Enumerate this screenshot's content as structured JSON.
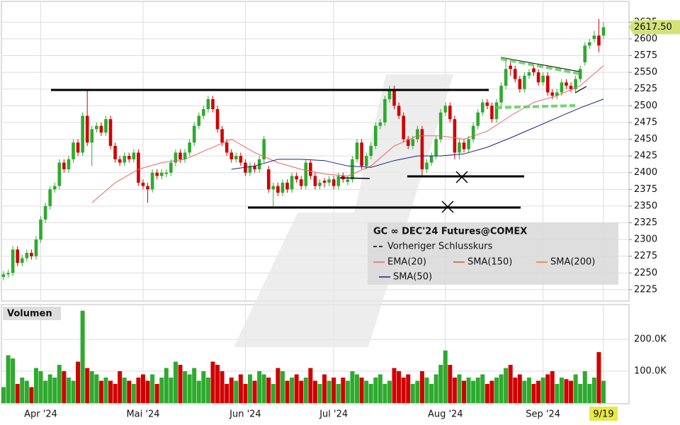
{
  "chart_data": [
    {
      "type": "candlestick",
      "title": "GC ∞ DEC'24 Futures@COMEX",
      "up_color": "#2eaa2e",
      "down_color": "#d00000",
      "ylim": [
        2208,
        2655
      ],
      "yticks": [
        2225,
        2250,
        2275,
        2300,
        2325,
        2350,
        2375,
        2400,
        2425,
        2450,
        2475,
        2500,
        2525,
        2550,
        2575,
        2600,
        2625
      ],
      "grid": true,
      "last_price": 2617.5,
      "last_price_label": "2617.50",
      "categories": [
        null,
        null,
        null,
        null,
        null,
        null,
        null,
        null,
        "Apr '24",
        null,
        null,
        null,
        null,
        null,
        null,
        null,
        null,
        null,
        null,
        null,
        null,
        null,
        null,
        null,
        null,
        null,
        null,
        null,
        null,
        null,
        "Mai '24",
        null,
        null,
        null,
        null,
        null,
        null,
        null,
        null,
        null,
        null,
        null,
        null,
        null,
        null,
        null,
        null,
        null,
        null,
        null,
        null,
        null,
        "Jun '24",
        null,
        null,
        null,
        null,
        null,
        null,
        null,
        null,
        null,
        null,
        null,
        null,
        null,
        null,
        null,
        null,
        null,
        null,
        "Jul '24",
        null,
        null,
        null,
        null,
        null,
        null,
        null,
        null,
        null,
        null,
        null,
        null,
        null,
        null,
        null,
        null,
        null,
        null,
        null,
        null,
        null,
        null,
        null,
        "Aug '24",
        null,
        null,
        null,
        null,
        null,
        null,
        null,
        null,
        null,
        null,
        null,
        null,
        null,
        null,
        null,
        null,
        null,
        null,
        null,
        null,
        "Sep '24",
        null,
        null,
        null,
        null,
        null,
        null,
        null,
        null,
        null,
        null,
        null,
        null,
        "9/19"
      ],
      "candles": [
        [
          2244,
          2253,
          2239,
          2248
        ],
        [
          2248,
          2255,
          2243,
          2250
        ],
        [
          2250,
          2290,
          2245,
          2285
        ],
        [
          2285,
          2290,
          2260,
          2265
        ],
        [
          2265,
          2277,
          2260,
          2272
        ],
        [
          2272,
          2285,
          2267,
          2280
        ],
        [
          2280,
          2285,
          2270,
          2275
        ],
        [
          2275,
          2305,
          2270,
          2300
        ],
        [
          2300,
          2335,
          2295,
          2330
        ],
        [
          2330,
          2355,
          2325,
          2350
        ],
        [
          2350,
          2380,
          2345,
          2375
        ],
        [
          2375,
          2385,
          2370,
          2380
        ],
        [
          2380,
          2420,
          2375,
          2415
        ],
        [
          2415,
          2420,
          2400,
          2405
        ],
        [
          2405,
          2425,
          2400,
          2420
        ],
        [
          2420,
          2450,
          2415,
          2445
        ],
        [
          2445,
          2450,
          2425,
          2430
        ],
        [
          2430,
          2490,
          2425,
          2485
        ],
        [
          2485,
          2525,
          2440,
          2445
        ],
        [
          2445,
          2470,
          2410,
          2465
        ],
        [
          2465,
          2475,
          2460,
          2470
        ],
        [
          2470,
          2475,
          2455,
          2460
        ],
        [
          2460,
          2485,
          2455,
          2480
        ],
        [
          2480,
          2485,
          2435,
          2440
        ],
        [
          2440,
          2445,
          2415,
          2420
        ],
        [
          2420,
          2425,
          2410,
          2415
        ],
        [
          2415,
          2430,
          2410,
          2425
        ],
        [
          2425,
          2430,
          2415,
          2420
        ],
        [
          2420,
          2435,
          2415,
          2430
        ],
        [
          2430,
          2435,
          2380,
          2385
        ],
        [
          2385,
          2390,
          2375,
          2380
        ],
        [
          2380,
          2385,
          2355,
          2375
        ],
        [
          2375,
          2405,
          2370,
          2400
        ],
        [
          2400,
          2405,
          2390,
          2395
        ],
        [
          2395,
          2405,
          2390,
          2400
        ],
        [
          2398,
          2405,
          2393,
          2400
        ],
        [
          2400,
          2420,
          2395,
          2415
        ],
        [
          2415,
          2435,
          2410,
          2430
        ],
        [
          2430,
          2435,
          2415,
          2420
        ],
        [
          2420,
          2435,
          2415,
          2430
        ],
        [
          2430,
          2450,
          2425,
          2445
        ],
        [
          2445,
          2475,
          2440,
          2470
        ],
        [
          2470,
          2490,
          2465,
          2485
        ],
        [
          2485,
          2500,
          2480,
          2495
        ],
        [
          2495,
          2515,
          2490,
          2510
        ],
        [
          2510,
          2515,
          2490,
          2495
        ],
        [
          2495,
          2500,
          2460,
          2465
        ],
        [
          2465,
          2470,
          2440,
          2445
        ],
        [
          2445,
          2450,
          2425,
          2430
        ],
        [
          2430,
          2435,
          2415,
          2420
        ],
        [
          2420,
          2430,
          2415,
          2425
        ],
        [
          2425,
          2430,
          2410,
          2415
        ],
        [
          2415,
          2420,
          2395,
          2400
        ],
        [
          2400,
          2415,
          2395,
          2410
        ],
        [
          2410,
          2415,
          2400,
          2405
        ],
        [
          2405,
          2425,
          2400,
          2420
        ],
        [
          2420,
          2455,
          2415,
          2450
        ],
        [
          2405,
          2410,
          2370,
          2375
        ],
        [
          2375,
          2385,
          2350,
          2380
        ],
        [
          2380,
          2385,
          2365,
          2370
        ],
        [
          2370,
          2390,
          2365,
          2385
        ],
        [
          2385,
          2390,
          2370,
          2375
        ],
        [
          2375,
          2400,
          2370,
          2395
        ],
        [
          2395,
          2400,
          2385,
          2390
        ],
        [
          2390,
          2395,
          2375,
          2380
        ],
        [
          2380,
          2420,
          2375,
          2415
        ],
        [
          2415,
          2420,
          2390,
          2395
        ],
        [
          2395,
          2400,
          2375,
          2380
        ],
        [
          2380,
          2390,
          2375,
          2385
        ],
        [
          2388,
          2392,
          2378,
          2385
        ],
        [
          2385,
          2395,
          2380,
          2390
        ],
        [
          2390,
          2395,
          2375,
          2380
        ],
        [
          2380,
          2400,
          2375,
          2395
        ],
        [
          2395,
          2400,
          2385,
          2390
        ],
        [
          2386,
          2395,
          2381,
          2390
        ],
        [
          2390,
          2425,
          2385,
          2420
        ],
        [
          2420,
          2450,
          2415,
          2445
        ],
        [
          2445,
          2450,
          2405,
          2410
        ],
        [
          2410,
          2430,
          2405,
          2425
        ],
        [
          2425,
          2445,
          2420,
          2440
        ],
        [
          2440,
          2475,
          2435,
          2470
        ],
        [
          2470,
          2480,
          2465,
          2475
        ],
        [
          2475,
          2515,
          2470,
          2510
        ],
        [
          2510,
          2530,
          2505,
          2525
        ],
        [
          2525,
          2530,
          2495,
          2500
        ],
        [
          2500,
          2505,
          2480,
          2485
        ],
        [
          2485,
          2490,
          2445,
          2450
        ],
        [
          2450,
          2455,
          2435,
          2440
        ],
        [
          2440,
          2455,
          2435,
          2450
        ],
        [
          2450,
          2470,
          2445,
          2465
        ],
        [
          2465,
          2470,
          2395,
          2405
        ],
        [
          2405,
          2420,
          2400,
          2415
        ],
        [
          2415,
          2430,
          2410,
          2425
        ],
        [
          2425,
          2455,
          2420,
          2450
        ],
        [
          2450,
          2495,
          2445,
          2490
        ],
        [
          2490,
          2505,
          2485,
          2500
        ],
        [
          2500,
          2505,
          2475,
          2480
        ],
        [
          2480,
          2485,
          2420,
          2430
        ],
        [
          2430,
          2450,
          2420,
          2445
        ],
        [
          2445,
          2450,
          2430,
          2435
        ],
        [
          2435,
          2455,
          2430,
          2450
        ],
        [
          2450,
          2475,
          2445,
          2470
        ],
        [
          2470,
          2495,
          2465,
          2490
        ],
        [
          2490,
          2510,
          2485,
          2505
        ],
        [
          2505,
          2510,
          2495,
          2500
        ],
        [
          2500,
          2505,
          2475,
          2480
        ],
        [
          2480,
          2510,
          2475,
          2505
        ],
        [
          2505,
          2535,
          2500,
          2530
        ],
        [
          2530,
          2570,
          2525,
          2555
        ],
        [
          2560,
          2565,
          2545,
          2555
        ],
        [
          2555,
          2560,
          2535,
          2540
        ],
        [
          2540,
          2545,
          2520,
          2525
        ],
        [
          2525,
          2550,
          2520,
          2545
        ],
        [
          2545,
          2555,
          2540,
          2550
        ],
        [
          2556,
          2560,
          2545,
          2550
        ],
        [
          2550,
          2555,
          2530,
          2535
        ],
        [
          2535,
          2550,
          2530,
          2545
        ],
        [
          2545,
          2550,
          2515,
          2520
        ],
        [
          2520,
          2525,
          2510,
          2515
        ],
        [
          2515,
          2525,
          2510,
          2520
        ],
        [
          2520,
          2540,
          2515,
          2535
        ],
        [
          2535,
          2540,
          2525,
          2530
        ],
        [
          2530,
          2535,
          2520,
          2525
        ],
        [
          2525,
          2545,
          2520,
          2540
        ],
        [
          2540,
          2560,
          2535,
          2555
        ],
        [
          2565,
          2595,
          2560,
          2590
        ],
        [
          2590,
          2600,
          2585,
          2595
        ],
        [
          2600,
          2612,
          2595,
          2605
        ],
        [
          2605,
          2630,
          2580,
          2590
        ],
        [
          2605,
          2625,
          2600,
          2617.5
        ]
      ],
      "lines": [
        {
          "name": "EMA(20)",
          "color": "#e8645f",
          "x": [
            19,
            24,
            29,
            34,
            39,
            44,
            49,
            54,
            59,
            64,
            69,
            74,
            79,
            84,
            89,
            94,
            99,
            104,
            109,
            114,
            119,
            124,
            129
          ],
          "values": [
            2355,
            2385,
            2405,
            2415,
            2420,
            2435,
            2450,
            2430,
            2415,
            2405,
            2398,
            2395,
            2410,
            2440,
            2455,
            2455,
            2450,
            2462,
            2485,
            2505,
            2515,
            2530,
            2560
          ]
        },
        {
          "name": "SMA(50)",
          "color": "#1a237e",
          "x": [
            49,
            54,
            59,
            64,
            69,
            74,
            79,
            84,
            89,
            94,
            99,
            104,
            109,
            114,
            119,
            124,
            129
          ],
          "values": [
            2405,
            2410,
            2420,
            2420,
            2418,
            2410,
            2408,
            2418,
            2425,
            2425,
            2428,
            2438,
            2452,
            2467,
            2482,
            2497,
            2510
          ]
        }
      ],
      "extra_legend": [
        {
          "name": "Vorheriger Schlusskurs",
          "color": "#000000",
          "dash": true
        },
        {
          "name": "SMA(150)",
          "color": "#c0602a",
          "dash": false
        },
        {
          "name": "SMA(200)",
          "color": "#f07820",
          "dash": false
        }
      ]
    },
    {
      "type": "bar",
      "title": "Volumen",
      "ylim": [
        0,
        307
      ],
      "yticks": [
        {
          "value": 100,
          "label": "100.0K"
        },
        {
          "value": 200,
          "label": "200.0K"
        }
      ],
      "values": [
        50,
        150,
        140,
        60,
        80,
        70,
        50,
        110,
        100,
        70,
        90,
        80,
        120,
        100,
        80,
        70,
        130,
        290,
        110,
        100,
        90,
        70,
        80,
        70,
        60,
        100,
        80,
        70,
        60,
        80,
        90,
        70,
        90,
        60,
        80,
        110,
        80,
        130,
        120,
        100,
        90,
        110,
        70,
        100,
        80,
        130,
        120,
        100,
        60,
        80,
        70,
        90,
        60,
        90,
        70,
        100,
        90,
        80,
        60,
        110,
        100,
        70,
        80,
        90,
        70,
        80,
        110,
        70,
        60,
        90,
        70,
        80,
        60,
        80,
        70,
        100,
        90,
        80,
        70,
        60,
        80,
        90,
        60,
        70,
        110,
        100,
        80,
        90,
        60,
        70,
        100,
        80,
        60,
        90,
        120,
        165,
        120,
        80,
        90,
        70,
        80,
        70,
        80,
        90,
        60,
        70,
        80,
        90,
        110,
        120,
        80,
        90,
        70,
        80,
        60,
        70,
        80,
        90,
        100,
        60,
        80,
        75,
        70,
        90,
        60,
        100,
        60,
        80,
        160,
        70
      ]
    }
  ]
}
